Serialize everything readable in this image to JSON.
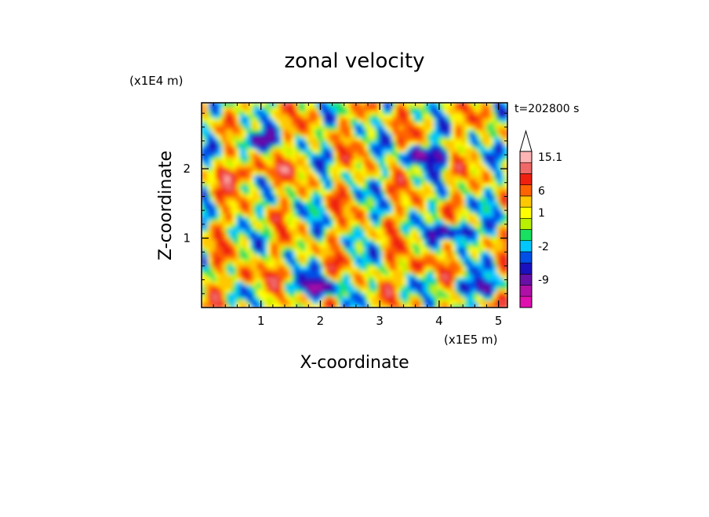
{
  "chart_data": {
    "type": "heatmap",
    "title": "zonal velocity",
    "xlabel": "X-coordinate",
    "ylabel": "Z-coordinate",
    "x_unit": "(x1E5 m)",
    "y_unit": "(x1E4 m)",
    "time_label": "t=202800 s",
    "xlim": [
      0,
      5.15
    ],
    "ylim": [
      0,
      2.95
    ],
    "x_ticks": [
      1,
      2,
      3,
      4,
      5
    ],
    "y_ticks": [
      1,
      2
    ],
    "colorbar": {
      "levels": [
        {
          "label": "",
          "color": "#e010b0"
        },
        {
          "label": "",
          "color": "#b010a8"
        },
        {
          "label": "-9",
          "color": "#6810a8"
        },
        {
          "label": "",
          "color": "#1a10c0"
        },
        {
          "label": "",
          "color": "#0050e8"
        },
        {
          "label": "-2",
          "color": "#00c8ff"
        },
        {
          "label": "",
          "color": "#18e060"
        },
        {
          "label": "",
          "color": "#b8f000"
        },
        {
          "label": "1",
          "color": "#ffff00"
        },
        {
          "label": "",
          "color": "#ffc800"
        },
        {
          "label": "6",
          "color": "#ff6400"
        },
        {
          "label": "",
          "color": "#f02010"
        },
        {
          "label": "",
          "color": "#f06868"
        },
        {
          "label": "15.1",
          "color": "#ffb4b4"
        }
      ]
    },
    "features": [
      {
        "x": 3.8,
        "z": 2.2,
        "level": "blue",
        "v": -12
      },
      {
        "x": 4.3,
        "z": 1.1,
        "level": "blue",
        "v": -12
      },
      {
        "x": 1.95,
        "z": 0.3,
        "level": "blue",
        "v": -12
      },
      {
        "x": 4.6,
        "z": 0.3,
        "level": "blue",
        "v": -10
      },
      {
        "x": 0.9,
        "z": 2.4,
        "level": "blue",
        "v": -10
      },
      {
        "x": 0.5,
        "z": 1.9,
        "level": "orange",
        "v": 6
      },
      {
        "x": 1.1,
        "z": 2.0,
        "level": "orange",
        "v": 6
      },
      {
        "x": 0.8,
        "z": 0.45,
        "level": "orange",
        "v": 5
      },
      {
        "x": 3.6,
        "z": 0.6,
        "level": "orange",
        "v": 5
      }
    ]
  }
}
